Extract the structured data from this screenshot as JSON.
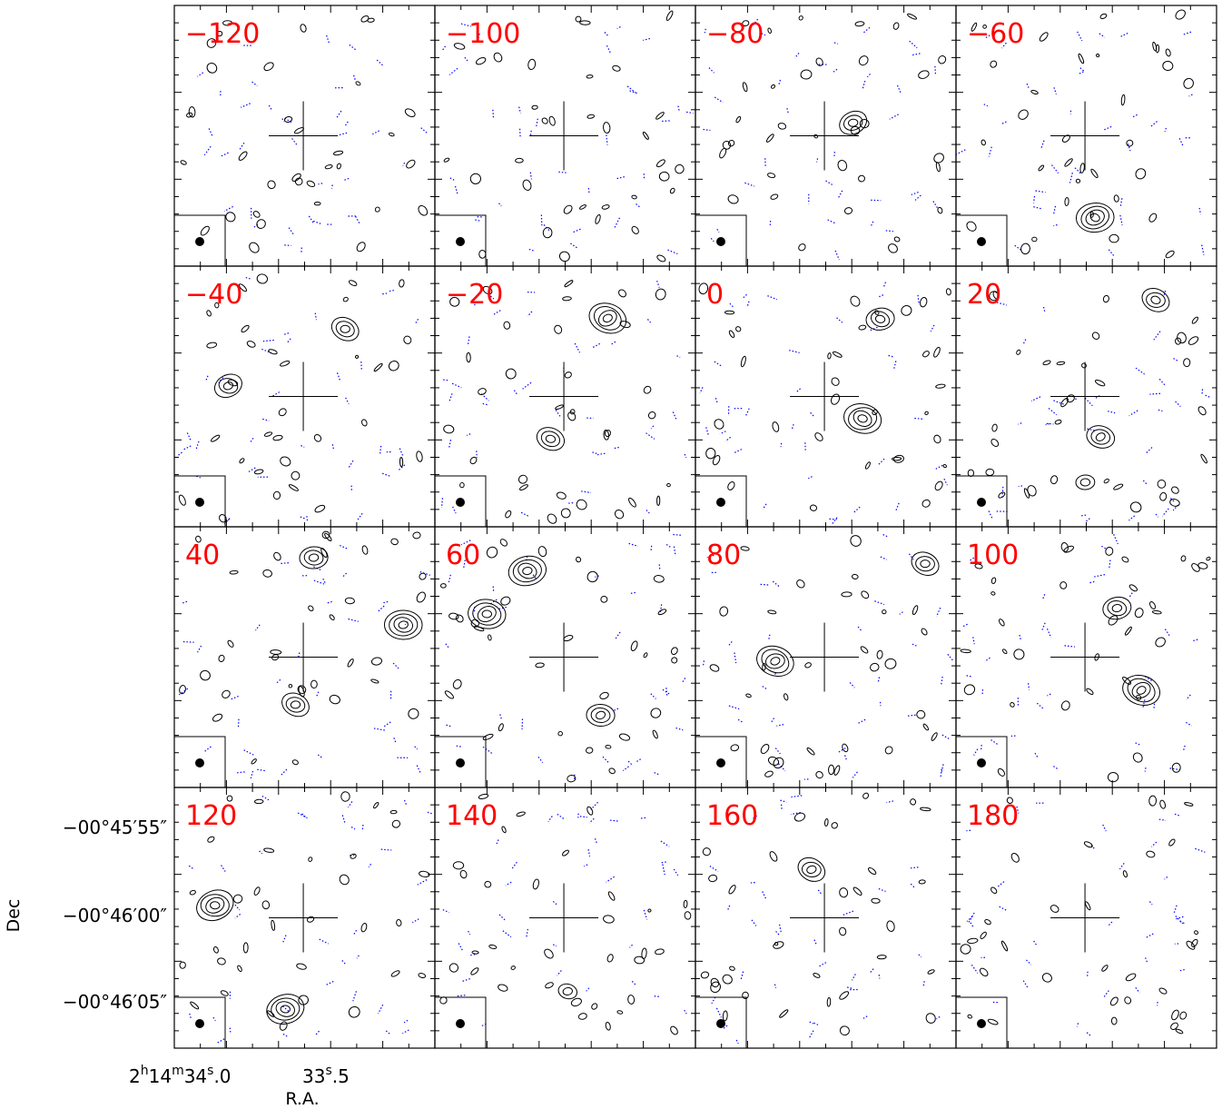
{
  "chart_data": {
    "type": "contour-channel-map",
    "grid": {
      "rows": 4,
      "cols": 4
    },
    "panels": [
      {
        "label": "−120"
      },
      {
        "label": "−100"
      },
      {
        "label": "−80"
      },
      {
        "label": "−60"
      },
      {
        "label": "−40"
      },
      {
        "label": "−20"
      },
      {
        "label": "0"
      },
      {
        "label": "20"
      },
      {
        "label": "40"
      },
      {
        "label": "60"
      },
      {
        "label": "80"
      },
      {
        "label": "100"
      },
      {
        "label": "120"
      },
      {
        "label": "140"
      },
      {
        "label": "160"
      },
      {
        "label": "180"
      }
    ],
    "xlabel": "R.A.",
    "ylabel": "Dec",
    "x_ticks": [
      {
        "h": "2",
        "m": "14",
        "s": "34",
        "frac": ".0"
      },
      {
        "s": "33",
        "frac": ".5"
      }
    ],
    "y_ticks": [
      "−00°45′55″",
      "−00°46′00″",
      "−00°46′05″"
    ],
    "legend": "none",
    "beam_marker": "filled ellipse in box, bottom-left",
    "center_marker": "cross",
    "colors": {
      "panel_label": "#ff0000",
      "positive_contour": "#000000",
      "negative_contour": "#0000ff",
      "frame": "#000000"
    }
  }
}
